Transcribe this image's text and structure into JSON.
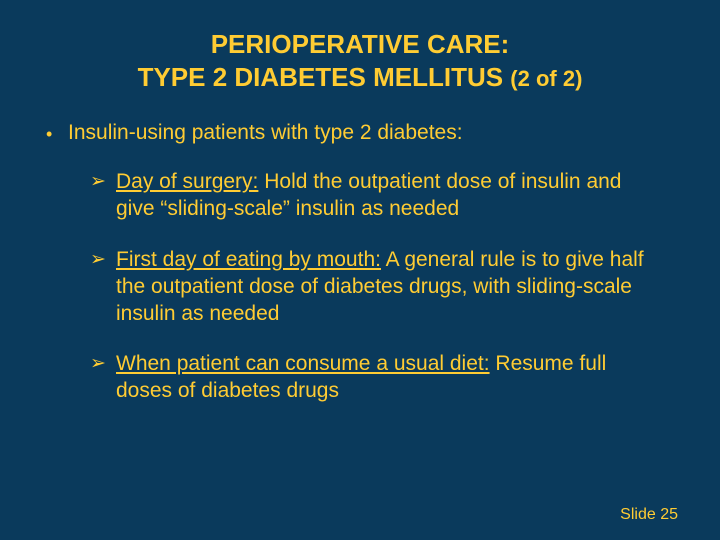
{
  "colors": {
    "background": "#0a3a5c",
    "text": "#ffcc33"
  },
  "title": {
    "line1": "PERIOPERATIVE CARE:",
    "line2_main": "TYPE 2 DIABETES MELLITUS ",
    "line2_paren": "(2 of 2)"
  },
  "bullet_lvl1": {
    "marker": "•",
    "text": "Insulin-using patients with type 2 diabetes:"
  },
  "bullets_lvl2": [
    {
      "marker": "➢",
      "lead": "Day of surgery:",
      "rest": "  Hold the outpatient dose of insulin and give “sliding-scale” insulin as needed"
    },
    {
      "marker": "➢",
      "lead": "First day of eating by mouth:",
      "rest": "  A general rule is to give half the outpatient dose of diabetes drugs, with sliding-scale insulin as needed"
    },
    {
      "marker": "➢",
      "lead": "When patient can consume a usual diet:",
      "rest": "  Resume full doses of diabetes drugs"
    }
  ],
  "footer": "Slide 25"
}
